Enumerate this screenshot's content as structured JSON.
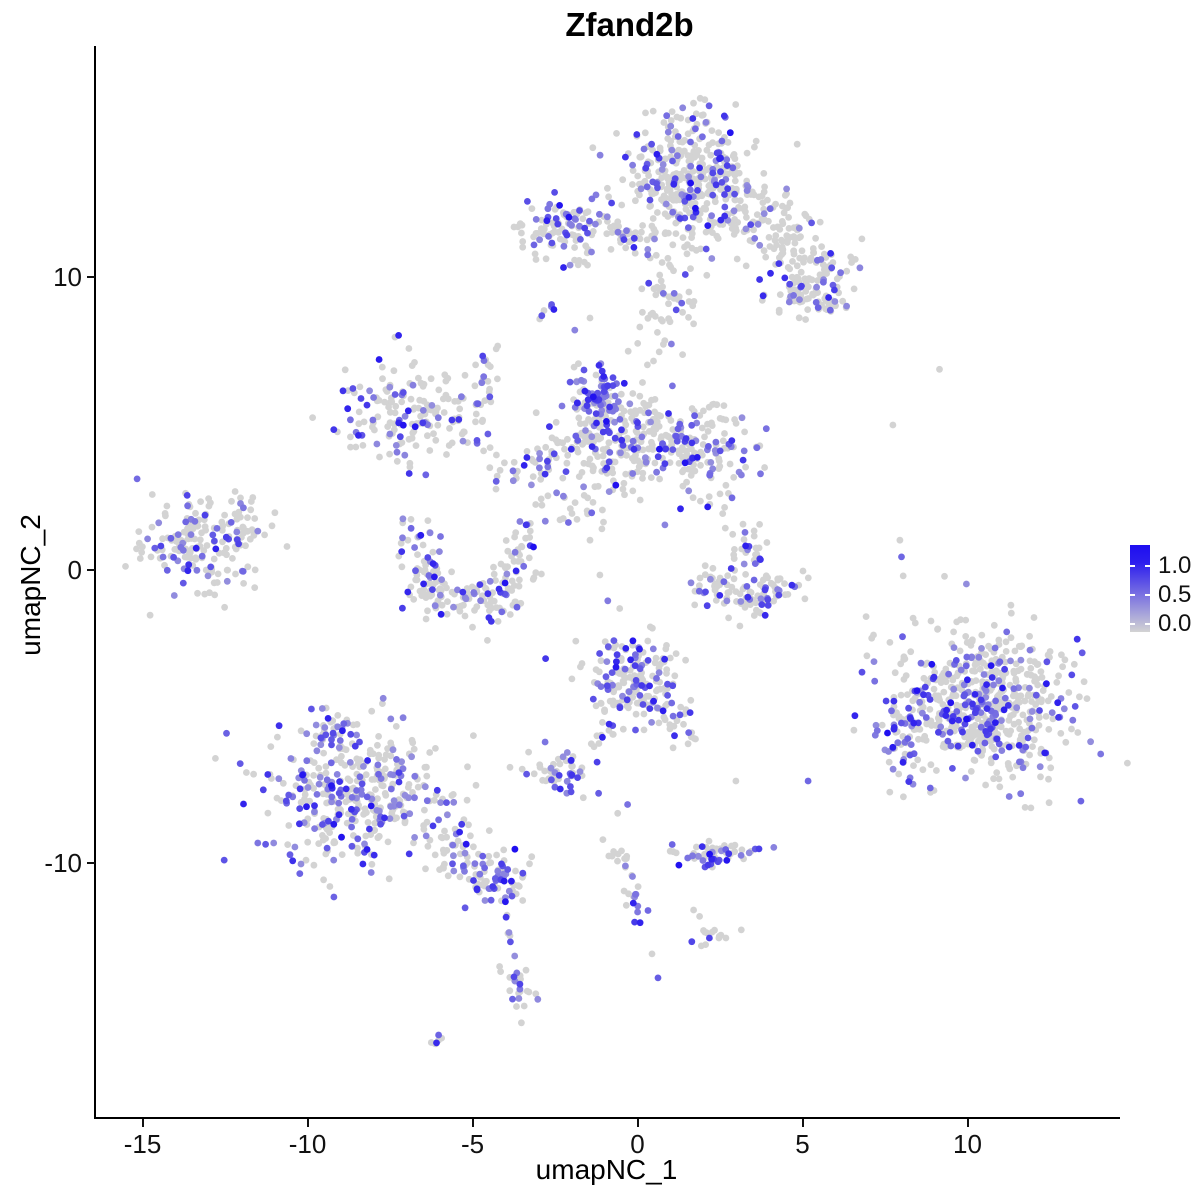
{
  "page": {
    "background": "#FFFFFF"
  },
  "chart_data": {
    "type": "scatter",
    "title": "Zfand2b",
    "xlabel": "umapNC_1",
    "ylabel": "umapNC_2",
    "xlim": [
      -16.44,
      14.56
    ],
    "ylim": [
      -18.7,
      17.85
    ],
    "x_ticks": [
      -15,
      -10,
      -5,
      0,
      5,
      10
    ],
    "y_ticks": [
      -10,
      0,
      10
    ],
    "grid": false,
    "legend_position": "right",
    "point_color_low": "#D3D3D3",
    "point_color_high": "#1E0EF0",
    "point_radius_px": 3.4,
    "legend": {
      "ticks": [
        {
          "label": "1.0",
          "f": 0.24
        },
        {
          "label": "0.5",
          "f": 0.575
        },
        {
          "label": "0.0",
          "f": 0.91
        }
      ]
    },
    "clusters": [
      {
        "name": "top-main",
        "type": "blob",
        "cx": 1.65,
        "cy": 13.2,
        "sx": 1.0,
        "sy": 1.15,
        "n": 430,
        "frac": 0.22
      },
      {
        "name": "top-neck",
        "type": "arm",
        "x1": 1.05,
        "y1": 10.2,
        "x2": 0.55,
        "y2": 7.9,
        "w": 0.45,
        "n": 55,
        "frac": 0.18
      },
      {
        "name": "top-right-arm",
        "type": "arm",
        "x1": 3.2,
        "y1": 12.6,
        "x2": 5.8,
        "y2": 9.7,
        "w": 0.55,
        "n": 150,
        "frac": 0.17
      },
      {
        "name": "top-right-end",
        "type": "blob",
        "cx": 5.25,
        "cy": 9.4,
        "sx": 0.55,
        "sy": 0.42,
        "n": 80,
        "frac": 0.3
      },
      {
        "name": "top-left-small",
        "type": "blob",
        "cx": -2.2,
        "cy": 11.6,
        "sx": 0.72,
        "sy": 0.58,
        "n": 110,
        "frac": 0.28
      },
      {
        "name": "top-left-chain",
        "type": "arm",
        "x1": -1.1,
        "y1": 11.45,
        "x2": 0.7,
        "y2": 11.1,
        "w": 0.28,
        "n": 35,
        "frac": 0.2
      },
      {
        "name": "tiny-streak",
        "type": "arm",
        "x1": -2.95,
        "y1": 8.5,
        "x2": -2.6,
        "y2": 9.05,
        "w": 0.1,
        "n": 6,
        "frac": 0.5
      },
      {
        "name": "mid-purple-sub",
        "type": "blob",
        "cx": -1.15,
        "cy": 5.95,
        "sx": 0.45,
        "sy": 0.62,
        "n": 75,
        "frac": 0.62
      },
      {
        "name": "mid-main",
        "type": "blob",
        "cx": -0.7,
        "cy": 4.45,
        "sx": 0.92,
        "sy": 0.82,
        "n": 210,
        "frac": 0.24
      },
      {
        "name": "mid-right-lobe",
        "type": "blob",
        "cx": 1.7,
        "cy": 4.35,
        "sx": 0.85,
        "sy": 0.68,
        "n": 150,
        "frac": 0.3
      },
      {
        "name": "mid-left-chain",
        "type": "arm",
        "x1": -2.2,
        "y1": 4.3,
        "x2": -4.0,
        "y2": 3.15,
        "w": 0.32,
        "n": 40,
        "frac": 0.35
      },
      {
        "name": "mid-below-sparse",
        "type": "blob",
        "cx": -2.05,
        "cy": 2.4,
        "sx": 0.75,
        "sy": 0.5,
        "n": 25,
        "frac": 0.15
      },
      {
        "name": "left-mid",
        "type": "blob",
        "cx": -7.05,
        "cy": 5.3,
        "sx": 0.85,
        "sy": 0.92,
        "n": 150,
        "frac": 0.3
      },
      {
        "name": "left-mid-vchain",
        "type": "arm",
        "x1": -4.55,
        "y1": 7.5,
        "x2": -4.85,
        "y2": 4.8,
        "w": 0.18,
        "n": 28,
        "frac": 0.3
      },
      {
        "name": "left-mid-dchain",
        "type": "arm",
        "x1": -5.7,
        "y1": 5.6,
        "x2": -4.25,
        "y2": 3.5,
        "w": 0.25,
        "n": 22,
        "frac": 0.25
      },
      {
        "name": "far-left",
        "type": "blob",
        "cx": -13.35,
        "cy": 0.95,
        "sx": 0.95,
        "sy": 0.72,
        "n": 175,
        "frac": 0.3
      },
      {
        "name": "far-left-sparse",
        "type": "blob",
        "cx": -11.9,
        "cy": 1.7,
        "sx": 0.5,
        "sy": 0.6,
        "n": 18,
        "frac": 0.06
      },
      {
        "name": "u-left",
        "type": "arm",
        "x1": -6.65,
        "y1": 1.3,
        "x2": -6.25,
        "y2": -0.9,
        "w": 0.33,
        "n": 60,
        "frac": 0.3
      },
      {
        "name": "u-bottom",
        "type": "arm",
        "x1": -6.25,
        "y1": -0.9,
        "x2": -4.0,
        "y2": -1.05,
        "w": 0.38,
        "n": 80,
        "frac": 0.28
      },
      {
        "name": "u-right",
        "type": "arm",
        "x1": -4.0,
        "y1": -1.05,
        "x2": -3.45,
        "y2": 1.45,
        "w": 0.33,
        "n": 55,
        "frac": 0.25
      },
      {
        "name": "crescent-a",
        "type": "arm",
        "x1": 2.0,
        "y1": -0.25,
        "x2": 3.25,
        "y2": -1.25,
        "w": 0.33,
        "n": 55,
        "frac": 0.22
      },
      {
        "name": "crescent-b",
        "type": "arm",
        "x1": 3.25,
        "y1": -1.25,
        "x2": 4.6,
        "y2": -0.5,
        "w": 0.33,
        "n": 55,
        "frac": 0.22
      },
      {
        "name": "crescent-top",
        "type": "blob",
        "cx": 3.35,
        "cy": 0.75,
        "sx": 0.35,
        "sy": 0.4,
        "n": 30,
        "frac": 0.3
      },
      {
        "name": "crescent-dots",
        "type": "blob",
        "cx": 2.55,
        "cy": 1.9,
        "sx": 0.3,
        "sy": 0.5,
        "n": 10,
        "frac": 0.3
      },
      {
        "name": "big-right",
        "type": "blob",
        "cx": 10.45,
        "cy": -4.65,
        "sx": 1.45,
        "sy": 1.35,
        "n": 620,
        "frac": 0.27
      },
      {
        "name": "big-right-edge",
        "type": "blob",
        "cx": 8.05,
        "cy": -5.55,
        "sx": 0.3,
        "sy": 0.85,
        "n": 45,
        "frac": 0.5
      },
      {
        "name": "center",
        "type": "blob",
        "cx": -0.1,
        "cy": -3.75,
        "sx": 0.75,
        "sy": 0.8,
        "n": 180,
        "frac": 0.3
      },
      {
        "name": "center-arm",
        "type": "arm",
        "x1": 0.85,
        "y1": -4.6,
        "x2": 1.55,
        "y2": -5.75,
        "w": 0.3,
        "n": 25,
        "frac": 0.35
      },
      {
        "name": "center-tail",
        "type": "arm",
        "x1": -0.75,
        "y1": -5.2,
        "x2": -1.5,
        "y2": -6.35,
        "w": 0.15,
        "n": 10,
        "frac": 0.3
      },
      {
        "name": "small-dense",
        "type": "blob",
        "cx": -2.3,
        "cy": -6.95,
        "sx": 0.55,
        "sy": 0.4,
        "n": 55,
        "frac": 0.5
      },
      {
        "name": "bottom-left",
        "type": "blob",
        "cx": -8.65,
        "cy": -7.6,
        "sx": 1.3,
        "sy": 1.25,
        "n": 400,
        "frac": 0.38
      },
      {
        "name": "bottom-left-knob",
        "type": "blob",
        "cx": -9.25,
        "cy": -5.4,
        "sx": 0.38,
        "sy": 0.3,
        "n": 30,
        "frac": 0.5
      },
      {
        "name": "bl-arm",
        "type": "arm",
        "x1": -6.25,
        "y1": -9.0,
        "x2": -4.0,
        "y2": -10.8,
        "w": 0.5,
        "n": 90,
        "frac": 0.33
      },
      {
        "name": "bl-elbow",
        "type": "blob",
        "cx": -4.3,
        "cy": -10.5,
        "sx": 0.45,
        "sy": 0.35,
        "n": 40,
        "frac": 0.4
      },
      {
        "name": "bl-chain",
        "type": "arm",
        "x1": -4.0,
        "y1": -11.25,
        "x2": -3.8,
        "y2": -13.05,
        "w": 0.12,
        "n": 9,
        "frac": 0.3
      },
      {
        "name": "bl-tail",
        "type": "arm",
        "x1": -3.8,
        "y1": -13.4,
        "x2": -3.3,
        "y2": -15.45,
        "w": 0.18,
        "n": 26,
        "frac": 0.45
      },
      {
        "name": "bl-tiny",
        "type": "arm",
        "x1": -6.4,
        "y1": -16.3,
        "x2": -5.9,
        "y2": -15.95,
        "w": 0.12,
        "n": 7,
        "frac": 0.3
      },
      {
        "name": "bc-streak-1",
        "type": "arm",
        "x1": -0.75,
        "y1": -9.15,
        "x2": -0.3,
        "y2": -10.6,
        "w": 0.15,
        "n": 14,
        "frac": 0.25
      },
      {
        "name": "bc-streak-2",
        "type": "arm",
        "x1": -0.3,
        "y1": -10.6,
        "x2": 0.1,
        "y2": -12.0,
        "w": 0.15,
        "n": 14,
        "frac": 0.5
      },
      {
        "name": "bc-cluster",
        "type": "blob",
        "cx": 2.4,
        "cy": -9.65,
        "sx": 0.75,
        "sy": 0.26,
        "n": 60,
        "frac": 0.35
      },
      {
        "name": "bc-small",
        "type": "blob",
        "cx": 2.4,
        "cy": -12.5,
        "sx": 0.4,
        "sy": 0.26,
        "n": 14,
        "frac": 0.25
      }
    ],
    "extra_points": [
      [
        9.15,
        6.85,
        0
      ],
      [
        7.74,
        4.95,
        0
      ],
      [
        7.95,
        1.02,
        0
      ],
      [
        8.0,
        0.45,
        0.55
      ],
      [
        8.05,
        -0.2,
        0
      ],
      [
        8.35,
        -1.64,
        0
      ],
      [
        2.98,
        -7.2,
        0
      ],
      [
        5.17,
        -7.2,
        0.55
      ],
      [
        0.62,
        -13.92,
        0.6
      ],
      [
        0.44,
        -13.1,
        0
      ],
      [
        -1.18,
        -7.62,
        0.6
      ],
      [
        -3.5,
        11.77,
        0
      ],
      [
        -2.35,
        1.71,
        0
      ],
      [
        -1.44,
        1.02,
        0
      ],
      [
        0.08,
        2.39,
        0
      ],
      [
        0.83,
        1.54,
        0.4
      ],
      [
        -1.14,
        -0.17,
        0
      ],
      [
        -0.9,
        -1.05,
        0.45
      ],
      [
        -5.0,
        -1.95,
        0
      ],
      [
        -4.55,
        -2.4,
        0
      ],
      [
        2.5,
        2.6,
        0
      ],
      [
        2.2,
        3.3,
        0.5
      ],
      [
        -11.3,
        1.2,
        0
      ],
      [
        -11.6,
        -0.6,
        0
      ],
      [
        2.0,
        -12.3,
        0
      ],
      [
        1.7,
        -11.6,
        0
      ],
      [
        -0.6,
        -8.3,
        0
      ],
      [
        -0.3,
        -8.0,
        0.5
      ],
      [
        3.6,
        4.2,
        0
      ],
      [
        3.85,
        3.5,
        0
      ],
      [
        1.9,
        16.1,
        0
      ],
      [
        6.8,
        11.3,
        0
      ],
      [
        6.6,
        10.6,
        0
      ],
      [
        -1.44,
        8.6,
        0
      ],
      [
        -1.9,
        8.19,
        0.4
      ],
      [
        0.3,
        7.0,
        0
      ],
      [
        0.15,
        6.4,
        0
      ]
    ]
  }
}
